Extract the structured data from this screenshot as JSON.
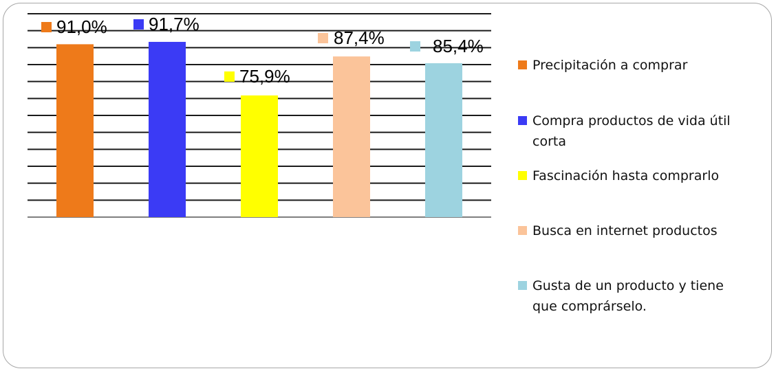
{
  "chart_data": {
    "type": "bar",
    "categories": [
      "Precipitación a comprar",
      "Compra productos de vida útil corta",
      "Fascinación  hasta comprarlo",
      "Busca en internet productos",
      "Gusta de un producto y tiene que comprárselo."
    ],
    "values": [
      91.0,
      91.7,
      75.9,
      87.4,
      85.4
    ],
    "data_labels": [
      "91,0%",
      "91,7%",
      "75,9%",
      "87,4%",
      "85,4%"
    ],
    "colors": [
      "#ee7a1a",
      "#3b3bf5",
      "#ffff00",
      "#fbc49a",
      "#9dd3e0"
    ],
    "ylim": [
      40,
      100
    ],
    "grid": true,
    "legend_position": "right",
    "legend": [
      {
        "label": "Precipitación a comprar",
        "line2": ""
      },
      {
        "label": "Compra productos de vida útil",
        "line2": "corta"
      },
      {
        "label": "Fascinación  hasta comprarlo",
        "line2": ""
      },
      {
        "label": "Busca en internet productos",
        "line2": ""
      },
      {
        "label": "Gusta de un producto y tiene",
        "line2": "que comprárselo."
      }
    ]
  }
}
